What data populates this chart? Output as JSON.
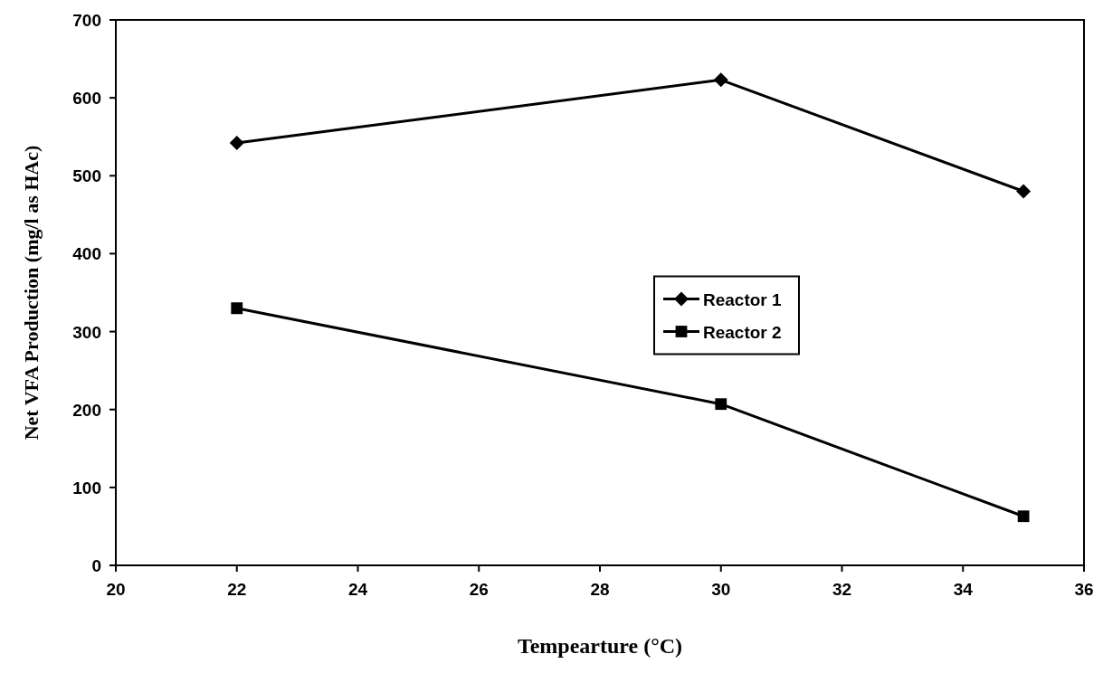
{
  "chart_data": {
    "type": "line",
    "xlabel": "Tempearture (°C)",
    "ylabel": "Net VFA Production (mg/l as HAc)",
    "x": [
      22,
      30,
      35
    ],
    "series": [
      {
        "name": "Reactor 1",
        "color": "#000000",
        "marker": "diamond",
        "values": [
          542,
          623,
          480
        ]
      },
      {
        "name": "Reactor 2",
        "color": "#000000",
        "marker": "square",
        "values": [
          330,
          207,
          63
        ]
      }
    ],
    "xlim": [
      20,
      36
    ],
    "xticks": [
      20,
      22,
      24,
      26,
      28,
      30,
      32,
      34,
      36
    ],
    "ylim": [
      0,
      700
    ],
    "yticks": [
      0,
      100,
      200,
      300,
      400,
      500,
      600,
      700
    ],
    "grid": false,
    "legend": "center",
    "line_style": "solid"
  }
}
